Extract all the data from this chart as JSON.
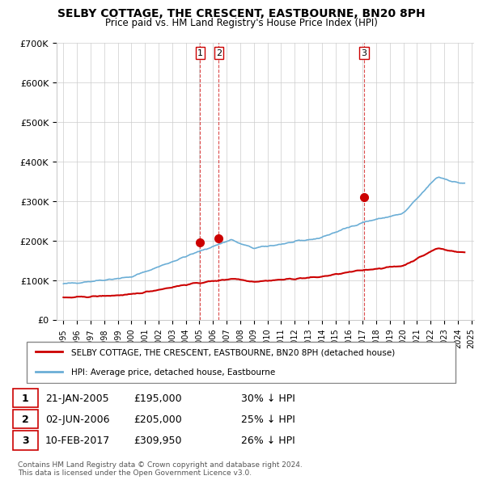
{
  "title": "SELBY COTTAGE, THE CRESCENT, EASTBOURNE, BN20 8PH",
  "subtitle": "Price paid vs. HM Land Registry's House Price Index (HPI)",
  "ylabel": "",
  "ylim": [
    0,
    700000
  ],
  "yticks": [
    0,
    100000,
    200000,
    300000,
    400000,
    500000,
    600000,
    700000
  ],
  "ytick_labels": [
    "£0",
    "£100K",
    "£200K",
    "£300K",
    "£400K",
    "£500K",
    "£600K",
    "£700K"
  ],
  "hpi_color": "#6baed6",
  "price_color": "#cc0000",
  "transaction_color": "#cc0000",
  "vline_color": "#cc0000",
  "grid_color": "#cccccc",
  "background_color": "#ffffff",
  "legend_box_color": "#000000",
  "transactions": [
    {
      "date": 2005.05,
      "price": 195000,
      "label": "1"
    },
    {
      "date": 2006.42,
      "price": 205000,
      "label": "2"
    },
    {
      "date": 2017.11,
      "price": 309950,
      "label": "3"
    }
  ],
  "table_rows": [
    {
      "num": "1",
      "date": "21-JAN-2005",
      "price": "£195,000",
      "hpi": "30% ↓ HPI"
    },
    {
      "num": "2",
      "date": "02-JUN-2006",
      "price": "£205,000",
      "hpi": "25% ↓ HPI"
    },
    {
      "num": "3",
      "date": "10-FEB-2017",
      "price": "£309,950",
      "hpi": "26% ↓ HPI"
    }
  ],
  "footnote": "Contains HM Land Registry data © Crown copyright and database right 2024.\nThis data is licensed under the Open Government Licence v3.0.",
  "legend_line1": "SELBY COTTAGE, THE CRESCENT, EASTBOURNE, BN20 8PH (detached house)",
  "legend_line2": "HPI: Average price, detached house, Eastbourne"
}
